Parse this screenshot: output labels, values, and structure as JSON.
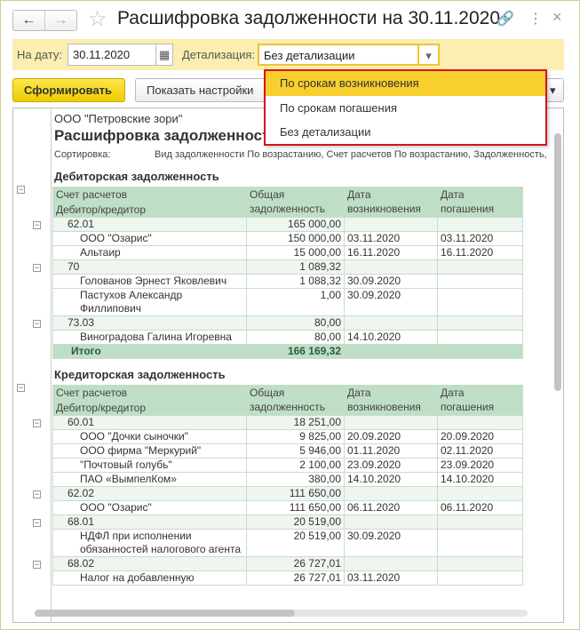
{
  "window": {
    "title": "Расшифровка задолженности на 30.11.2020",
    "back": "←",
    "forward": "→",
    "star": "☆",
    "link": "🔗",
    "more": "⋮",
    "close": "×"
  },
  "filters": {
    "date_label": "На дату:",
    "date_value": "30.11.2020",
    "detail_label": "Детализация:",
    "detail_value": "Без детализации",
    "calendar": "▦",
    "arrow": "▾"
  },
  "toolbar": {
    "generate": "Сформировать",
    "show_settings": "Показать настройки",
    "more_arrow": "▾"
  },
  "dropdown": {
    "options": [
      "По срокам возникновения",
      "По срокам погашения",
      "Без детализации"
    ],
    "highlighted": 0
  },
  "report": {
    "org": "ООО \"Петровские зори\"",
    "title": "Расшифровка задолженност",
    "sort_label": "Сортировка:",
    "sort_value": "Вид задолженности По возрастанию, Счет расчетов По возрастанию, Задолженность,",
    "headers": {
      "account": "Счет расчетов",
      "counterparty": "Дебитор/кредитор",
      "total": "Общая",
      "total2": "задолженность",
      "date_start": "Дата",
      "date_start2": "возникновения",
      "date_end": "Дата",
      "date_end2": "погашения"
    },
    "sections": [
      {
        "title": "Дебиторская задолженность",
        "groups": [
          {
            "account": "62.01",
            "total": "165 000,00",
            "rows": [
              [
                "ООО \"Озарис\"",
                "150 000,00",
                "03.11.2020",
                "03.11.2020"
              ],
              [
                "Альтаир",
                "15 000,00",
                "16.11.2020",
                "16.11.2020"
              ]
            ]
          },
          {
            "account": "70",
            "total": "1 089,32",
            "rows": [
              [
                "Голованов Эрнест Яковлевич",
                "1 088,32",
                "30.09.2020",
                ""
              ],
              [
                "Пастухов Александр Филлипович",
                "1,00",
                "30.09.2020",
                ""
              ]
            ]
          },
          {
            "account": "73.03",
            "total": "80,00",
            "rows": [
              [
                "Виноградова Галина Игоревна",
                "80,00",
                "14.10.2020",
                ""
              ]
            ]
          }
        ],
        "total_label": "Итого",
        "total_value": "166 169,32"
      },
      {
        "title": "Кредиторская задолженность",
        "groups": [
          {
            "account": "60.01",
            "total": "18 251,00",
            "rows": [
              [
                "ООО \"Дочки сыночки\"",
                "9 825,00",
                "20.09.2020",
                "20.09.2020"
              ],
              [
                "ООО фирма \"Меркурий\"",
                "5 946,00",
                "01.11.2020",
                "02.11.2020"
              ],
              [
                "\"Почтовый голубь\"",
                "2 100,00",
                "23.09.2020",
                "23.09.2020"
              ],
              [
                "ПАО «ВымпелКом»",
                "380,00",
                "14.10.2020",
                "14.10.2020"
              ]
            ]
          },
          {
            "account": "62.02",
            "total": "111 650,00",
            "rows": [
              [
                "ООО \"Озарис\"",
                "111 650,00",
                "06.11.2020",
                "06.11.2020"
              ]
            ]
          },
          {
            "account": "68.01",
            "total": "20 519,00",
            "rows": [
              [
                "НДФЛ при исполнении обязанностей налогового агента",
                "20 519,00",
                "30.09.2020",
                ""
              ]
            ]
          },
          {
            "account": "68.02",
            "total": "26 727,01",
            "rows": [
              [
                "Налог на добавленную",
                "26 727,01",
                "03.11.2020",
                ""
              ]
            ]
          }
        ]
      }
    ]
  }
}
